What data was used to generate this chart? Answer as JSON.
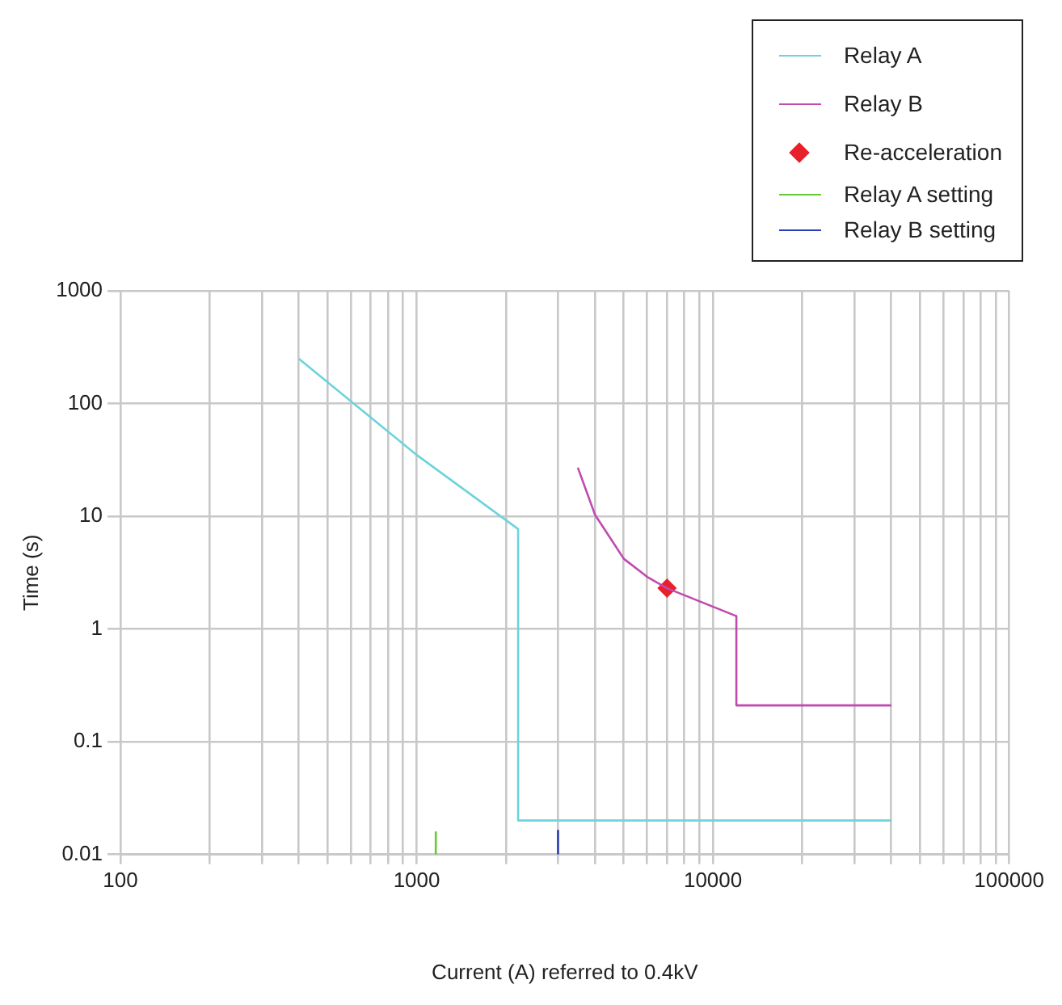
{
  "chart_data": {
    "type": "line",
    "xlabel": "Current (A) referred to 0.4kV",
    "ylabel": "Time (s)",
    "log": "xy",
    "grid": true,
    "legend": "top right",
    "xlim": [
      100,
      100000
    ],
    "ylim": [
      0.01,
      1000
    ],
    "xticks": [
      100,
      {
        "value": 200,
        "label": null
      },
      {
        "value": 300,
        "label": null
      },
      {
        "value": 400,
        "label": null
      },
      {
        "value": 500,
        "label": null
      },
      {
        "value": 600,
        "label": null
      },
      {
        "value": 700,
        "label": null
      },
      {
        "value": 800,
        "label": null
      },
      {
        "value": 900,
        "label": null
      },
      1000,
      {
        "value": 2000,
        "label": null
      },
      {
        "value": 3000,
        "label": null
      },
      {
        "value": 4000,
        "label": null
      },
      {
        "value": 5000,
        "label": null
      },
      {
        "value": 6000,
        "label": null
      },
      {
        "value": 7000,
        "label": null
      },
      {
        "value": 8000,
        "label": null
      },
      {
        "value": 9000,
        "label": null
      },
      10000,
      {
        "value": 20000,
        "label": null
      },
      {
        "value": 30000,
        "label": null
      },
      {
        "value": 40000,
        "label": null
      },
      {
        "value": 50000,
        "label": null
      },
      {
        "value": 60000,
        "label": null
      },
      {
        "value": 70000,
        "label": null
      },
      {
        "value": 80000,
        "label": null
      },
      {
        "value": 90000,
        "label": null
      },
      100000
    ],
    "yticks": [
      0.01,
      0.1,
      1,
      10,
      100,
      1000
    ],
    "series": [
      {
        "name": "Relay A",
        "color": "#6dd3dc",
        "x": [
          400,
          1000,
          2200,
          2200,
          40000
        ],
        "values": [
          250,
          35,
          7.7,
          0.02,
          0.02
        ]
      },
      {
        "name": "Relay B",
        "color": "#c04ab0",
        "x": [
          3500,
          4000,
          5000,
          6000,
          7000,
          12000,
          12000,
          40000
        ],
        "values": [
          27,
          10.3,
          4.2,
          2.9,
          2.3,
          1.3,
          0.21,
          0.21
        ]
      },
      {
        "name": "Re-acceleration",
        "type": "scatter",
        "marker": "diamond",
        "color": "#e8202a",
        "x": [
          7000
        ],
        "values": [
          2.3
        ]
      },
      {
        "name": "Relay A setting",
        "color": "#66cc33",
        "x": [
          1160,
          1160
        ],
        "values": [
          0.01,
          0.016
        ]
      },
      {
        "name": "Relay B setting",
        "color": "#2a3fb5",
        "x": [
          3000,
          3000
        ],
        "values": [
          0.01,
          0.0165
        ]
      }
    ]
  }
}
